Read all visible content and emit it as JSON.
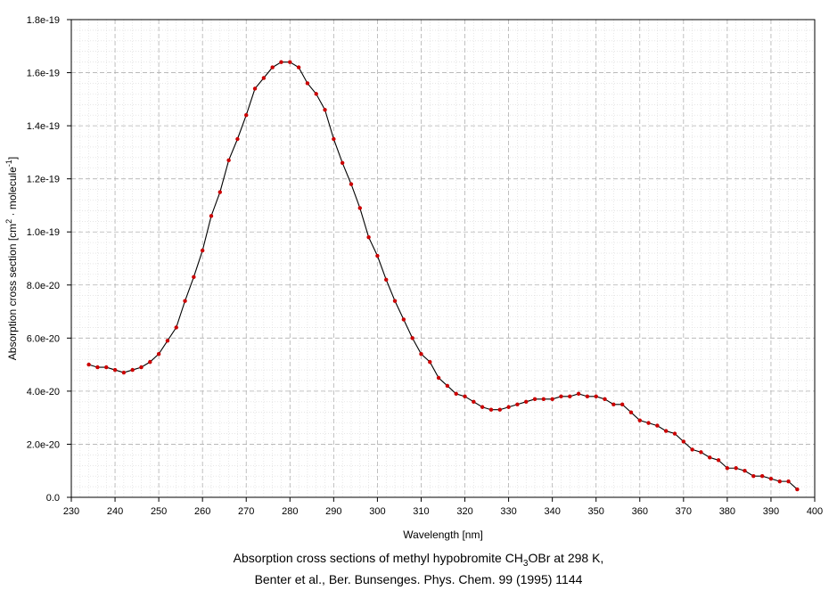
{
  "chart_data": {
    "type": "line",
    "xlabel": "Wavelength [nm]",
    "ylabel": {
      "main": "Absorption cross section [cm",
      "sup1": "2",
      "mid": " · molecule",
      "sup2": "-1",
      "end": "]"
    },
    "caption": {
      "line1_pre": "Absorption cross sections of methyl hypobromite CH",
      "line1_sub": "3",
      "line1_post": "OBr at 298 K,",
      "line2": "Benter et al., Ber. Bunsenges. Phys. Chem. 99 (1995) 1144"
    },
    "xlim": [
      230,
      400
    ],
    "ylim": [
      0,
      1.8e-19
    ],
    "x_ticks": [
      230,
      240,
      250,
      260,
      270,
      280,
      290,
      300,
      310,
      320,
      330,
      340,
      350,
      360,
      370,
      380,
      390,
      400
    ],
    "x_tick_labels": [
      "230",
      "240",
      "250",
      "260",
      "270",
      "280",
      "290",
      "300",
      "310",
      "320",
      "330",
      "340",
      "350",
      "360",
      "370",
      "380",
      "390",
      "400"
    ],
    "y_ticks": [
      0,
      2e-20,
      4e-20,
      6e-20,
      8e-20,
      1e-19,
      1.2e-19,
      1.4e-19,
      1.6e-19,
      1.8e-19
    ],
    "y_tick_labels": [
      "0.0",
      "2.0e-20",
      "4.0e-20",
      "6.0e-20",
      "8.0e-20",
      "1.0e-19",
      "1.2e-19",
      "1.4e-19",
      "1.6e-19",
      "1.8e-19"
    ],
    "grid": true,
    "line_color": "#000000",
    "marker_color": "#cc0000",
    "series": [
      {
        "x": [
          234,
          236,
          238,
          240,
          242,
          244,
          246,
          248,
          250,
          252,
          254,
          256,
          258,
          260,
          262,
          264,
          266,
          268,
          270,
          272,
          274,
          276,
          278,
          280,
          282,
          284,
          286,
          288,
          290,
          292,
          294,
          296,
          298,
          300,
          302,
          304,
          306,
          308,
          310,
          312,
          314,
          316,
          318,
          320,
          322,
          324,
          326,
          328,
          330,
          332,
          334,
          336,
          338,
          340,
          342,
          344,
          346,
          348,
          350,
          352,
          354,
          356,
          358,
          360,
          362,
          364,
          366,
          368,
          370,
          372,
          374,
          376,
          378,
          380,
          382,
          384,
          386,
          388,
          390,
          392,
          394,
          396
        ],
        "y": [
          5e-20,
          4.9e-20,
          4.9e-20,
          4.8e-20,
          4.7e-20,
          4.8e-20,
          4.9e-20,
          5.1e-20,
          5.4e-20,
          5.9e-20,
          6.4e-20,
          7.4e-20,
          8.3e-20,
          9.3e-20,
          1.06e-19,
          1.15e-19,
          1.27e-19,
          1.35e-19,
          1.44e-19,
          1.54e-19,
          1.58e-19,
          1.62e-19,
          1.64e-19,
          1.64e-19,
          1.62e-19,
          1.56e-19,
          1.52e-19,
          1.46e-19,
          1.35e-19,
          1.26e-19,
          1.18e-19,
          1.09e-19,
          9.8e-20,
          9.1e-20,
          8.2e-20,
          7.4e-20,
          6.7e-20,
          6e-20,
          5.4e-20,
          5.1e-20,
          4.5e-20,
          4.2e-20,
          3.9e-20,
          3.8e-20,
          3.6e-20,
          3.4e-20,
          3.3e-20,
          3.3e-20,
          3.4e-20,
          3.5e-20,
          3.6e-20,
          3.7e-20,
          3.7e-20,
          3.7e-20,
          3.8e-20,
          3.8e-20,
          3.9e-20,
          3.8e-20,
          3.8e-20,
          3.7e-20,
          3.5e-20,
          3.5e-20,
          3.2e-20,
          2.9e-20,
          2.8e-20,
          2.7e-20,
          2.5e-20,
          2.4e-20,
          2.1e-20,
          1.8e-20,
          1.7e-20,
          1.5e-20,
          1.4e-20,
          1.1e-20,
          1.1e-20,
          1e-20,
          8e-21,
          8e-21,
          7e-21,
          6e-21,
          6e-21,
          3e-21
        ]
      }
    ]
  }
}
